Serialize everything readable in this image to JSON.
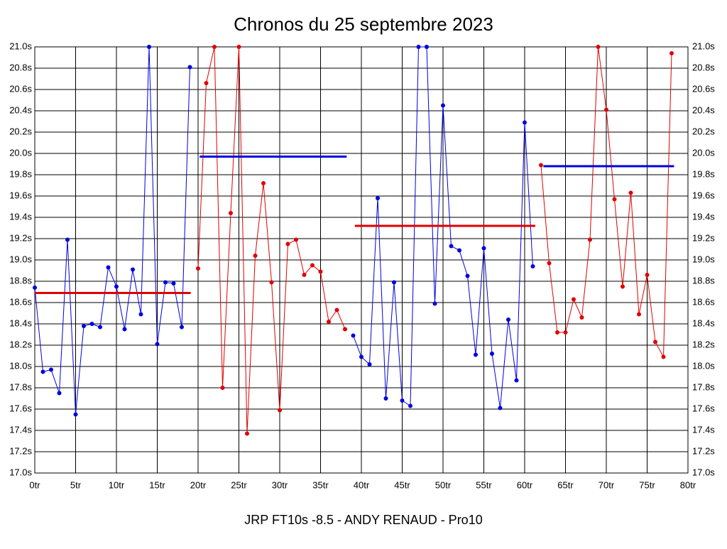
{
  "chart_data": {
    "type": "line",
    "title": "Chronos du 25 septembre 2023",
    "xlabel": "JRP FT10s -8.5 - ANDY RENAUD - Pro10",
    "xlim": [
      0,
      80
    ],
    "ylim": [
      17.0,
      21.0
    ],
    "y2lim": [
      17.0,
      21.0
    ],
    "grid": true,
    "xticks": [
      {
        "value": 0,
        "label": "0tr"
      },
      {
        "value": 5,
        "label": "5tr"
      },
      {
        "value": 10,
        "label": "10tr"
      },
      {
        "value": 15,
        "label": "15tr"
      },
      {
        "value": 20,
        "label": "20tr"
      },
      {
        "value": 25,
        "label": "25tr"
      },
      {
        "value": 30,
        "label": "30tr"
      },
      {
        "value": 35,
        "label": "35tr"
      },
      {
        "value": 40,
        "label": "40tr"
      },
      {
        "value": 45,
        "label": "45tr"
      },
      {
        "value": 50,
        "label": "50tr"
      },
      {
        "value": 55,
        "label": "55tr"
      },
      {
        "value": 60,
        "label": "60tr"
      },
      {
        "value": 65,
        "label": "65tr"
      },
      {
        "value": 70,
        "label": "70tr"
      },
      {
        "value": 75,
        "label": "75tr"
      },
      {
        "value": 80,
        "label": "80tr"
      }
    ],
    "yticks": [
      {
        "value": 17.0,
        "label": "17.0s"
      },
      {
        "value": 17.2,
        "label": "17.2s"
      },
      {
        "value": 17.4,
        "label": "17.4s"
      },
      {
        "value": 17.6,
        "label": "17.6s"
      },
      {
        "value": 17.8,
        "label": "17.8s"
      },
      {
        "value": 18.0,
        "label": "18.0s"
      },
      {
        "value": 18.2,
        "label": "18.2s"
      },
      {
        "value": 18.4,
        "label": "18.4s"
      },
      {
        "value": 18.6,
        "label": "18.6s"
      },
      {
        "value": 18.8,
        "label": "18.8s"
      },
      {
        "value": 19.0,
        "label": "19.0s"
      },
      {
        "value": 19.2,
        "label": "19.2s"
      },
      {
        "value": 19.4,
        "label": "19.4s"
      },
      {
        "value": 19.6,
        "label": "19.6s"
      },
      {
        "value": 19.8,
        "label": "19.8s"
      },
      {
        "value": 20.0,
        "label": "20.0s"
      },
      {
        "value": 20.2,
        "label": "20.2s"
      },
      {
        "value": 20.4,
        "label": "20.4s"
      },
      {
        "value": 20.6,
        "label": "20.6s"
      },
      {
        "value": 20.8,
        "label": "20.8s"
      },
      {
        "value": 21.0,
        "label": "21.0s"
      }
    ],
    "series": [
      {
        "color": "#0000e0",
        "x": [
          0,
          1,
          2,
          3,
          4,
          5,
          6,
          7,
          8,
          9,
          10,
          11,
          12,
          13,
          14,
          15,
          16,
          17,
          18,
          19
        ],
        "values": [
          18.74,
          17.95,
          17.97,
          17.75,
          19.19,
          17.55,
          18.38,
          18.4,
          18.37,
          18.93,
          18.75,
          18.35,
          18.91,
          18.49,
          21.0,
          18.21,
          18.79,
          18.78,
          18.37,
          20.81
        ]
      },
      {
        "color": "#e00000",
        "x": [
          20,
          21,
          22,
          23,
          24,
          25,
          26,
          27,
          28,
          29,
          30,
          31,
          32,
          33,
          34,
          35,
          36,
          37,
          38
        ],
        "values": [
          18.92,
          20.66,
          21.0,
          17.8,
          19.44,
          21.0,
          17.37,
          19.04,
          19.72,
          18.79,
          17.59,
          19.15,
          19.19,
          18.86,
          18.95,
          18.89,
          18.42,
          18.53,
          18.35
        ]
      },
      {
        "color": "#0000e0",
        "x": [
          39,
          40,
          41,
          42,
          43,
          44,
          45,
          46,
          47,
          48,
          49,
          50,
          51,
          52,
          53,
          54,
          55,
          56,
          57,
          58,
          59,
          60,
          61
        ],
        "values": [
          18.29,
          18.09,
          18.02,
          19.58,
          17.7,
          18.79,
          17.68,
          17.63,
          21.0,
          21.0,
          18.59,
          20.45,
          19.13,
          19.09,
          18.85,
          18.11,
          19.11,
          18.12,
          17.61,
          18.44,
          17.87,
          20.29,
          18.94
        ]
      },
      {
        "color": "#e00000",
        "x": [
          62,
          63,
          64,
          65,
          66,
          67,
          68,
          69,
          70,
          71,
          72,
          73,
          74,
          75,
          76,
          77,
          78
        ],
        "values": [
          19.89,
          18.97,
          18.32,
          18.32,
          18.63,
          18.46,
          19.19,
          21.0,
          20.41,
          19.57,
          18.75,
          19.63,
          18.49,
          18.86,
          18.23,
          18.09,
          20.94
        ]
      }
    ],
    "averages": [
      {
        "color": "#e00000",
        "x": [
          0,
          19.1
        ],
        "values": [
          18.69,
          18.69
        ]
      },
      {
        "color": "#0000e0",
        "x": [
          20.2,
          38.2
        ],
        "values": [
          19.97,
          19.97
        ]
      },
      {
        "color": "#e00000",
        "x": [
          39.2,
          61.3
        ],
        "values": [
          19.32,
          19.32
        ]
      },
      {
        "color": "#0000e0",
        "x": [
          62.3,
          78.3
        ],
        "values": [
          19.88,
          19.88
        ]
      }
    ]
  }
}
